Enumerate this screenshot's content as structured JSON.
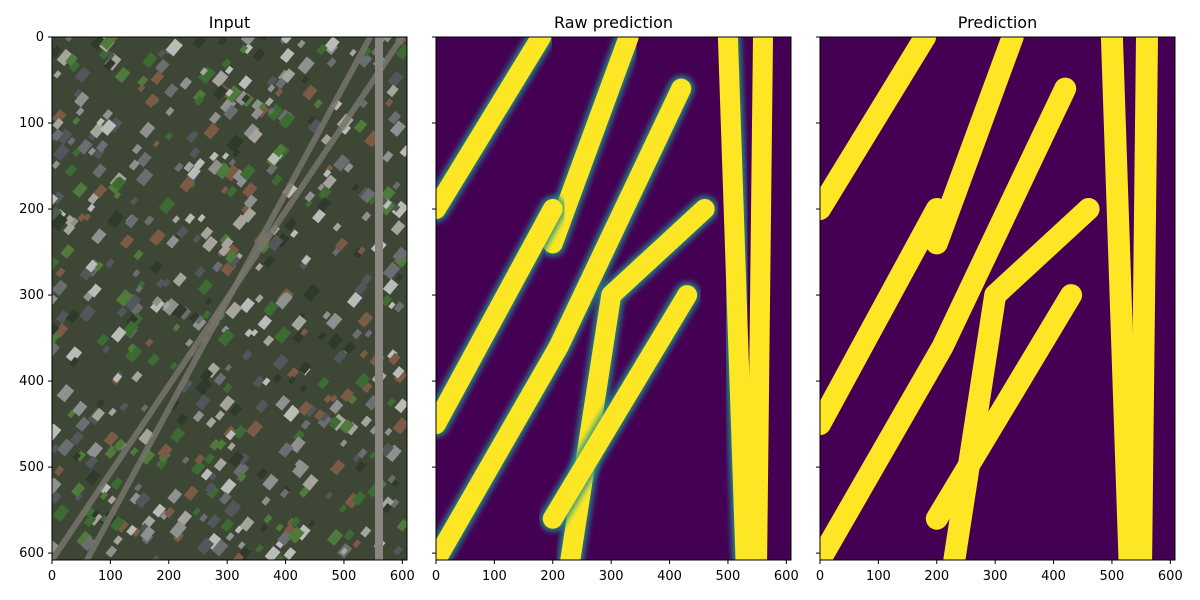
{
  "chart_data": [
    {
      "type": "heatmap",
      "title": "Input",
      "content": "aerial-photo",
      "xlim": [
        0,
        608
      ],
      "ylim": [
        608,
        0
      ],
      "x_ticks": [
        "0",
        "100",
        "200",
        "300",
        "400",
        "500",
        "600"
      ],
      "y_ticks": [
        "0",
        "100",
        "200",
        "300",
        "400",
        "500",
        "600"
      ],
      "show_y_tick_labels": true,
      "colors": {
        "ground": "#3e4635",
        "tree": "#3d6b34",
        "roof_dark": "#4d5256",
        "roof_light": "#bfc2bf",
        "road": "#77746c"
      },
      "roads_data_units": [
        [
          [
            0,
            608
          ],
          [
            600,
            0
          ]
        ],
        [
          [
            60,
            608
          ],
          [
            545,
            0
          ]
        ]
      ]
    },
    {
      "type": "heatmap",
      "title": "Raw prediction",
      "colormap": "viridis",
      "xlim": [
        0,
        608
      ],
      "ylim": [
        608,
        0
      ],
      "x_ticks": [
        "0",
        "100",
        "200",
        "300",
        "400",
        "500",
        "600"
      ],
      "y_ticks": [
        "0",
        "100",
        "200",
        "300",
        "400",
        "500",
        "600"
      ],
      "show_y_tick_labels": false,
      "colors": {
        "background": "#440154",
        "foreground": "#fde725",
        "edge": "#21918c"
      },
      "roads_data_units": [
        [
          [
            0,
            200
          ],
          [
            180,
            0
          ]
        ],
        [
          [
            200,
            240
          ],
          [
            330,
            0
          ]
        ],
        [
          [
            0,
            608
          ],
          [
            210,
            360
          ],
          [
            420,
            60
          ]
        ],
        [
          [
            230,
            608
          ],
          [
            300,
            300
          ],
          [
            460,
            200
          ]
        ],
        [
          [
            200,
            560
          ],
          [
            430,
            300
          ]
        ],
        [
          [
            0,
            450
          ],
          [
            200,
            200
          ]
        ],
        [
          [
            530,
            608
          ],
          [
            500,
            0
          ]
        ],
        [
          [
            550,
            608
          ],
          [
            560,
            0
          ]
        ]
      ]
    },
    {
      "type": "heatmap",
      "title": "Prediction",
      "colormap": "viridis-binary",
      "xlim": [
        0,
        608
      ],
      "ylim": [
        608,
        0
      ],
      "x_ticks": [
        "0",
        "100",
        "200",
        "300",
        "400",
        "500",
        "600"
      ],
      "y_ticks": [
        "0",
        "100",
        "200",
        "300",
        "400",
        "500",
        "600"
      ],
      "show_y_tick_labels": false,
      "colors": {
        "background": "#440154",
        "foreground": "#fde725"
      },
      "roads_data_units": [
        [
          [
            0,
            200
          ],
          [
            180,
            0
          ]
        ],
        [
          [
            200,
            240
          ],
          [
            330,
            0
          ]
        ],
        [
          [
            0,
            608
          ],
          [
            210,
            360
          ],
          [
            420,
            60
          ]
        ],
        [
          [
            230,
            608
          ],
          [
            300,
            300
          ],
          [
            460,
            200
          ]
        ],
        [
          [
            200,
            560
          ],
          [
            430,
            300
          ]
        ],
        [
          [
            0,
            450
          ],
          [
            200,
            200
          ]
        ],
        [
          [
            530,
            608
          ],
          [
            500,
            0
          ]
        ],
        [
          [
            550,
            608
          ],
          [
            560,
            0
          ]
        ]
      ]
    }
  ]
}
